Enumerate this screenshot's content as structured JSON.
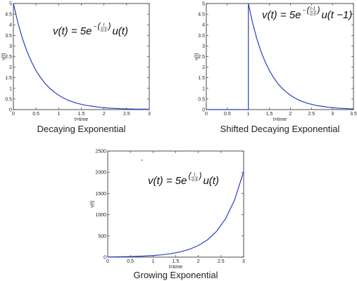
{
  "chart_data": [
    {
      "type": "line",
      "title": "Decaying Exponential",
      "equation": {
        "lead": "v(t) = 5e",
        "exp_sign": "−",
        "exp_num": "t",
        "exp_den": "0.5",
        "tail": "u(t)"
      },
      "xlabel": "t=time",
      "ylabel": "v(t)",
      "xlim": [
        0,
        3
      ],
      "ylim": [
        0,
        5
      ],
      "xticks": [
        "0",
        "0.5",
        "1",
        "1.5",
        "2",
        "2.5",
        "3"
      ],
      "yticks": [
        "0",
        "0.5",
        "1",
        "1.5",
        "2",
        "2.5",
        "3",
        "3.5",
        "4",
        "4.5",
        "5"
      ],
      "grid": false,
      "line_color": "#2b3fbf",
      "series": [
        {
          "x": [
            0,
            0.1,
            0.2,
            0.3,
            0.4,
            0.5,
            0.6,
            0.7,
            0.8,
            0.9,
            1.0,
            1.1,
            1.2,
            1.3,
            1.4,
            1.5,
            1.6,
            1.7,
            1.8,
            1.9,
            2.0,
            2.1,
            2.2,
            2.3,
            2.4,
            2.5,
            2.6,
            2.7,
            2.8,
            2.9,
            3.0
          ],
          "y": [
            5.0,
            4.09,
            3.35,
            2.74,
            2.25,
            1.84,
            1.51,
            1.23,
            1.01,
            0.83,
            0.68,
            0.55,
            0.45,
            0.37,
            0.3,
            0.25,
            0.2,
            0.17,
            0.14,
            0.11,
            0.09,
            0.07,
            0.06,
            0.05,
            0.04,
            0.03,
            0.03,
            0.02,
            0.02,
            0.02,
            0.01
          ]
        }
      ]
    },
    {
      "type": "line",
      "title": "Shifted Decaying Exponential",
      "equation": {
        "lead": "v(t) = 5e",
        "exp_sign": "−",
        "exp_num": "t-1",
        "exp_den": "0.5",
        "tail": "u(t −1)"
      },
      "xlabel": "t=time",
      "ylabel": "v(t)",
      "xlim": [
        0,
        3.5
      ],
      "ylim": [
        0,
        5
      ],
      "xticks": [
        "0",
        "0.5",
        "1",
        "1.5",
        "2",
        "2.5",
        "3",
        "3.5"
      ],
      "yticks": [
        "0",
        "0.5",
        "1",
        "1.5",
        "2",
        "2.5",
        "3",
        "3.5",
        "4",
        "4.5",
        "5"
      ],
      "grid": false,
      "line_color": "#2b3fbf",
      "series": [
        {
          "x": [
            0,
            1.0,
            1.0,
            1.1,
            1.2,
            1.3,
            1.4,
            1.5,
            1.6,
            1.7,
            1.8,
            1.9,
            2.0,
            2.1,
            2.2,
            2.3,
            2.4,
            2.5,
            2.6,
            2.7,
            2.8,
            2.9,
            3.0,
            3.1,
            3.2,
            3.3,
            3.4,
            3.5
          ],
          "y": [
            0,
            0,
            5.0,
            4.09,
            3.35,
            2.74,
            2.25,
            1.84,
            1.51,
            1.23,
            1.01,
            0.83,
            0.68,
            0.55,
            0.45,
            0.37,
            0.3,
            0.25,
            0.2,
            0.17,
            0.14,
            0.11,
            0.09,
            0.07,
            0.06,
            0.05,
            0.04,
            0.03
          ]
        }
      ]
    },
    {
      "type": "line",
      "title": "Growing Exponential",
      "equation": {
        "lead": "v(t) = 5e",
        "exp_sign": "",
        "exp_num": "t",
        "exp_den": "0.5",
        "tail": "u(t)"
      },
      "xlabel": "t=time",
      "ylabel": "v(t)",
      "xlim": [
        0,
        3
      ],
      "ylim": [
        0,
        2500
      ],
      "xticks": [
        "0",
        "0.5",
        "1",
        "1.5",
        "2",
        "2.5",
        "3"
      ],
      "yticks": [
        "0",
        "500",
        "1000",
        "1500",
        "2000",
        "2500"
      ],
      "grid": false,
      "line_color": "#2b3fbf",
      "series": [
        {
          "x": [
            0,
            0.2,
            0.4,
            0.6,
            0.8,
            1.0,
            1.2,
            1.4,
            1.6,
            1.8,
            2.0,
            2.2,
            2.4,
            2.6,
            2.8,
            3.0
          ],
          "y": [
            5,
            7,
            11,
            17,
            25,
            37,
            55,
            82,
            123,
            183,
            273,
            406,
            605,
            903,
            1345,
            2017
          ]
        }
      ]
    }
  ]
}
